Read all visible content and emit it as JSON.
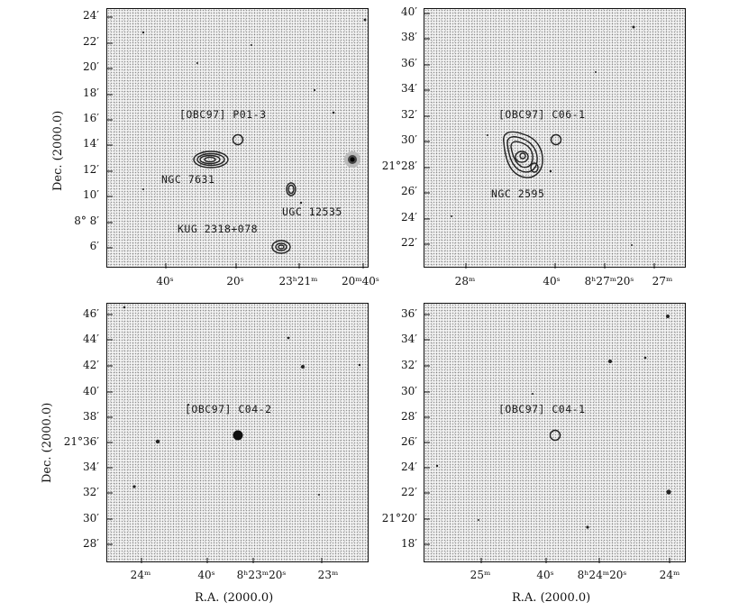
{
  "axis_titles": {
    "dec": "Dec. (2000.0)",
    "ra": "R.A. (2000.0)"
  },
  "panels": [
    {
      "id": "p1",
      "ra_ticks": [
        "40ˢ",
        "20ˢ",
        "23ʰ21ᵐ",
        "20ᵐ40ˢ"
      ],
      "dec_ticks": [
        "24′",
        "22′",
        "20′",
        "18′",
        "16′",
        "14′",
        "12′",
        "10′",
        "8° 8′",
        "6′"
      ],
      "labels": [
        "[OBC97] P01-3",
        "NGC 7631",
        "UGC 12535",
        "KUG 2318+078"
      ]
    },
    {
      "id": "p2",
      "ra_ticks": [
        "28ᵐ",
        "40ˢ",
        "8ʰ27ᵐ20ˢ",
        "27ᵐ"
      ],
      "dec_ticks": [
        "40′",
        "38′",
        "36′",
        "34′",
        "32′",
        "30′",
        "21°28′",
        "26′",
        "24′",
        "22′"
      ],
      "labels": [
        "[OBC97] C06-1",
        "NGC 2595"
      ]
    },
    {
      "id": "p3",
      "ra_ticks": [
        "24ᵐ",
        "40ˢ",
        "8ʰ23ᵐ20ˢ",
        "23ᵐ"
      ],
      "dec_ticks": [
        "46′",
        "44′",
        "42′",
        "40′",
        "38′",
        "21°36′",
        "34′",
        "32′",
        "30′",
        "28′"
      ],
      "labels": [
        "[OBC97] C04-2"
      ]
    },
    {
      "id": "p4",
      "ra_ticks": [
        "25ᵐ",
        "40ˢ",
        "8ʰ24ᵐ20ˢ",
        "24ᵐ"
      ],
      "dec_ticks": [
        "36′",
        "34′",
        "32′",
        "30′",
        "28′",
        "26′",
        "24′",
        "22′",
        "21°20′",
        "18′"
      ],
      "labels": [
        "[OBC97] C04-1"
      ]
    }
  ]
}
